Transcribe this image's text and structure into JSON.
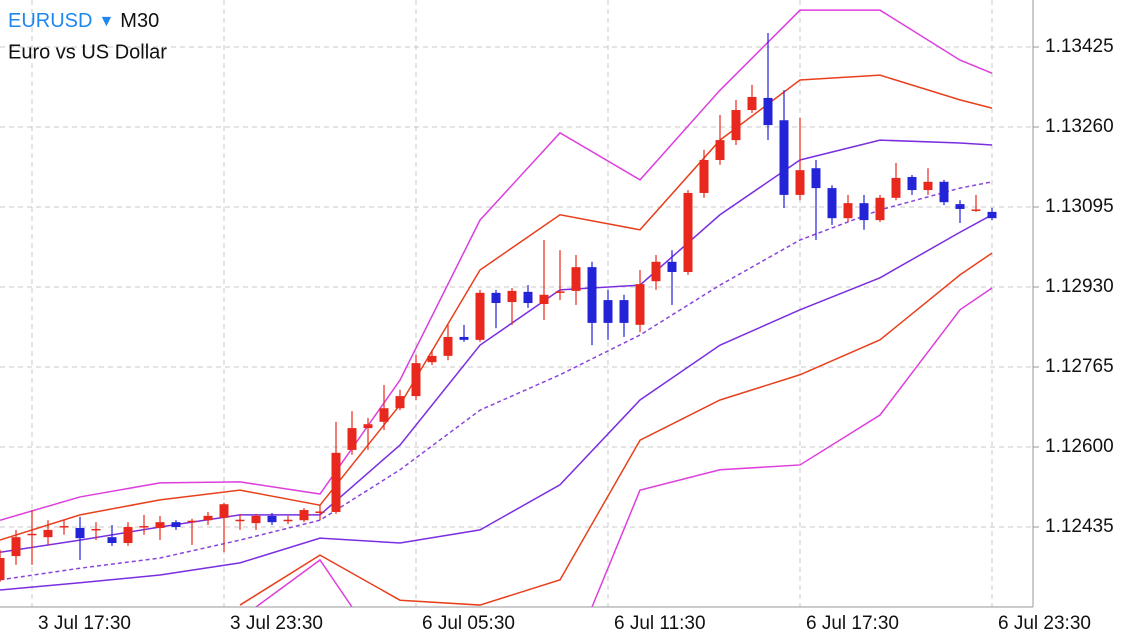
{
  "header": {
    "symbol": "EURUSD",
    "arrow": "▼",
    "timeframe": "M30",
    "description": "Euro vs US Dollar"
  },
  "chart_data": {
    "type": "candlestick",
    "categories": [
      null,
      null,
      "3 Jul 17:30",
      null,
      null,
      null,
      null,
      null,
      null,
      null,
      null,
      null,
      null,
      null,
      "3 Jul 23:30",
      null,
      null,
      null,
      null,
      null,
      null,
      null,
      null,
      null,
      null,
      null,
      "6 Jul 05:30",
      null,
      null,
      null,
      null,
      null,
      null,
      null,
      null,
      null,
      null,
      null,
      "6 Jul 11:30",
      null,
      null,
      null,
      null,
      null,
      null,
      null,
      null,
      null,
      null,
      null,
      "6 Jul 17:30",
      null,
      null,
      null,
      null,
      null,
      null,
      null,
      null,
      null,
      null,
      null,
      "6 Jul 23:30"
    ],
    "open": [
      1.12326,
      1.12375,
      1.12419,
      1.12414,
      1.12435,
      1.12433,
      1.12429,
      1.12414,
      1.12402,
      1.12435,
      1.12433,
      1.12445,
      1.12447,
      1.12449,
      1.12454,
      1.12449,
      1.12443,
      1.12458,
      1.12449,
      1.12449,
      1.12466,
      1.12466,
      1.12594,
      1.12639,
      1.12652,
      1.1268,
      1.12705,
      1.12775,
      1.12788,
      1.12827,
      1.12821,
      1.12918,
      1.12899,
      1.1292,
      1.12895,
      1.1292,
      1.12922,
      1.12971,
      1.12903,
      1.12903,
      1.12852,
      1.12942,
      1.12982,
      1.12961,
      1.13124,
      1.13192,
      1.13233,
      1.13295,
      1.1332,
      1.13274,
      1.1312,
      1.13175,
      1.13134,
      1.13072,
      1.13103,
      1.13068,
      1.13114,
      1.13157,
      1.1313,
      1.13147,
      1.13101,
      1.13089,
      1.13085
    ],
    "high": [
      1.12388,
      1.12429,
      1.1247,
      1.12449,
      1.12449,
      1.12456,
      1.12445,
      1.12439,
      1.12445,
      1.1246,
      1.12458,
      1.12449,
      1.12452,
      1.12466,
      1.12485,
      1.12462,
      1.12462,
      1.12464,
      1.12458,
      1.12474,
      1.1248,
      1.12652,
      1.12674,
      1.1266,
      1.12728,
      1.12718,
      1.1279,
      1.128,
      1.12852,
      1.12852,
      1.12924,
      1.12924,
      1.12928,
      1.12934,
      1.13027,
      1.13006,
      1.12996,
      1.12982,
      1.12924,
      1.12914,
      1.12965,
      1.12996,
      1.13006,
      1.1313,
      1.13213,
      1.13285,
      1.13316,
      1.13347,
      1.13454,
      1.13336,
      1.13279,
      1.13192,
      1.1314,
      1.1312,
      1.1312,
      1.1312,
      1.13186,
      1.13161,
      1.13175,
      1.13151,
      1.13109,
      1.1312,
      1.13093
    ],
    "low": [
      1.12322,
      1.12357,
      1.12357,
      1.12398,
      1.12419,
      1.12367,
      1.12408,
      1.12396,
      1.12396,
      1.12419,
      1.12408,
      1.12429,
      1.12398,
      1.12439,
      1.12383,
      1.12429,
      1.12429,
      1.12439,
      1.12441,
      1.12445,
      1.12449,
      1.12462,
      1.12584,
      1.12594,
      1.12635,
      1.12676,
      1.12697,
      1.12769,
      1.12779,
      1.12817,
      1.12817,
      1.12845,
      1.12852,
      1.12887,
      1.12862,
      1.12903,
      1.12893,
      1.1281,
      1.12821,
      1.12827,
      1.12837,
      1.12924,
      1.12893,
      1.12955,
      1.13114,
      1.13182,
      1.13223,
      1.13289,
      1.13233,
      1.13093,
      1.13109,
      1.13027,
      1.13058,
      1.13064,
      1.13048,
      1.13064,
      1.13109,
      1.1312,
      1.1312,
      1.13099,
      1.13062,
      1.13085,
      1.13068
    ],
    "close": [
      1.12371,
      1.12414,
      1.12421,
      1.12429,
      1.12437,
      1.12412,
      1.12431,
      1.12402,
      1.12435,
      1.12437,
      1.12445,
      1.12435,
      1.12448,
      1.12458,
      1.12482,
      1.1245,
      1.12458,
      1.12445,
      1.1245,
      1.1247,
      1.12467,
      1.12588,
      1.12639,
      1.12647,
      1.1268,
      1.12705,
      1.12773,
      1.12788,
      1.12827,
      1.12821,
      1.12918,
      1.12897,
      1.12922,
      1.12897,
      1.12914,
      1.12921,
      1.12971,
      1.12856,
      1.12856,
      1.12856,
      1.12936,
      1.12982,
      1.12961,
      1.13124,
      1.13192,
      1.13233,
      1.13295,
      1.13322,
      1.13264,
      1.1312,
      1.13171,
      1.13134,
      1.13072,
      1.13103,
      1.13068,
      1.13114,
      1.13155,
      1.1313,
      1.13147,
      1.13105,
      1.13091,
      1.1309,
      1.13072
    ],
    "up_color": "#e8281c",
    "down_color": "#2323d8",
    "lines": [
      {
        "color": "#dd3fdd",
        "dashed": false,
        "x": [
          0,
          5,
          10,
          15,
          20,
          25,
          30,
          35,
          40,
          45,
          50,
          55,
          60,
          62
        ],
        "values": [
          1.12449,
          1.12497,
          1.12526,
          1.12528,
          1.12503,
          1.12738,
          1.13068,
          1.13248,
          1.13151,
          1.13336,
          1.13501,
          1.13501,
          1.13398,
          1.13371
        ]
      },
      {
        "color": "#e8401c",
        "dashed": false,
        "x": [
          0,
          5,
          10,
          15,
          20,
          25,
          30,
          35,
          40,
          45,
          50,
          55,
          60,
          62
        ],
        "values": [
          1.12408,
          1.1246,
          1.12491,
          1.12511,
          1.1248,
          1.12687,
          1.12965,
          1.13079,
          1.13048,
          1.13233,
          1.13357,
          1.13367,
          1.13316,
          1.13299
        ]
      },
      {
        "color": "#7a2ee0",
        "dashed": false,
        "x": [
          0,
          5,
          10,
          15,
          20,
          25,
          30,
          35,
          40,
          45,
          50,
          55,
          60,
          62
        ],
        "values": [
          1.12383,
          1.12408,
          1.12435,
          1.1246,
          1.1246,
          1.12604,
          1.1281,
          1.12924,
          1.12934,
          1.13079,
          1.13192,
          1.13233,
          1.13227,
          1.13223
        ]
      },
      {
        "color": "#8a45dc",
        "dashed": true,
        "x": [
          0,
          5,
          10,
          15,
          20,
          25,
          30,
          35,
          40,
          45,
          50,
          55,
          60,
          62
        ],
        "values": [
          1.12326,
          1.1235,
          1.12371,
          1.12408,
          1.12449,
          1.12553,
          1.12676,
          1.12749,
          1.12831,
          1.12934,
          1.13027,
          1.13089,
          1.13134,
          1.13147
        ]
      },
      {
        "color": "#7a2ee0",
        "dashed": false,
        "x": [
          0,
          5,
          10,
          15,
          20,
          25,
          30,
          35,
          40,
          45,
          50,
          55,
          60,
          62
        ],
        "values": [
          1.12305,
          1.1232,
          1.12336,
          1.12361,
          1.12412,
          1.12402,
          1.12429,
          1.12522,
          1.12697,
          1.1281,
          1.12883,
          1.12949,
          1.13043,
          1.13079
        ]
      },
      {
        "color": "#e8401c",
        "dashed": false,
        "x": [
          15,
          20,
          25,
          30,
          35,
          40,
          45,
          50,
          55,
          60,
          62
        ],
        "values": [
          1.12274,
          1.12377,
          1.12284,
          1.12274,
          1.12326,
          1.12614,
          1.12697,
          1.12749,
          1.12821,
          1.12955,
          1.13
        ]
      },
      {
        "color": "#dd3fdd",
        "dashed": false,
        "x": [
          16,
          20,
          22,
          30,
          37,
          40,
          45,
          50,
          55,
          60,
          62
        ],
        "values": [
          1.1227,
          1.12367,
          1.1227,
          null,
          1.1227,
          1.12511,
          1.12553,
          1.12563,
          1.12666,
          1.12883,
          1.12928
        ]
      }
    ],
    "ylim": [
      1.1227,
      1.13522
    ],
    "yticks": [
      1.12435,
      {
        "value": 1.126,
        "label": "1.12600"
      },
      1.12765,
      {
        "value": 1.1293,
        "label": "1.12930"
      },
      1.13095,
      {
        "value": 1.1326,
        "label": "1.13260"
      },
      1.13425
    ],
    "grid": true
  }
}
